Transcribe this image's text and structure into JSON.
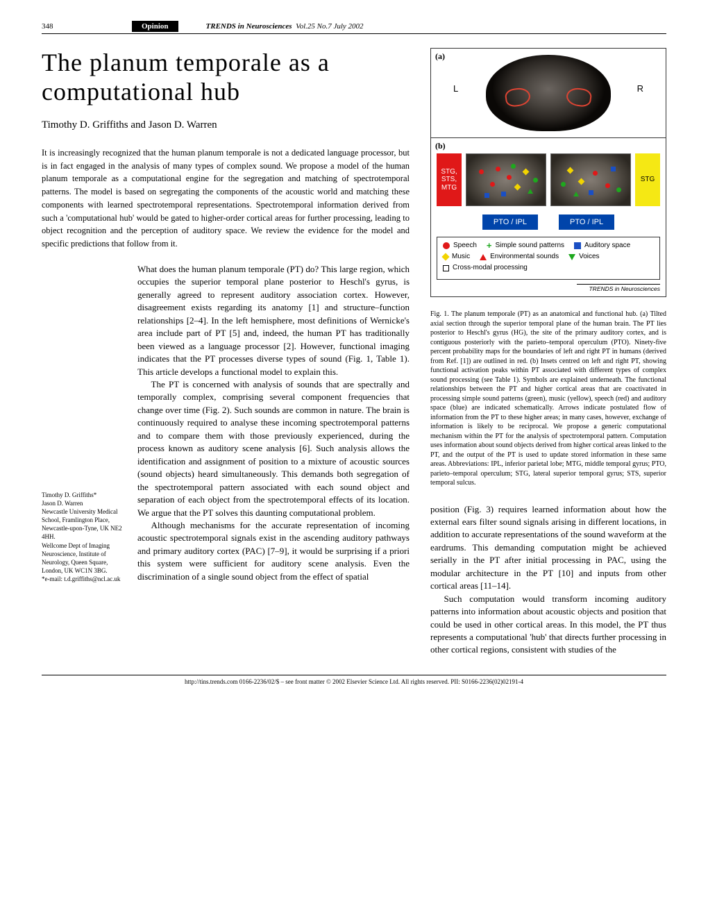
{
  "header": {
    "page_number": "348",
    "section": "Opinion",
    "journal_name": "TRENDS in Neurosciences",
    "issue_info": "Vol.25 No.7 July 2002"
  },
  "article": {
    "title": "The planum temporale as a computational hub",
    "authors": "Timothy D. Griffiths and Jason D. Warren",
    "abstract": "It is increasingly recognized that the human planum temporale is not a dedicated language processor, but is in fact engaged in the analysis of many types of complex sound. We propose a model of the human planum temporale as a computational engine for the segregation and matching of spectrotemporal patterns. The model is based on segregating the components of the acoustic world and matching these components with learned spectrotemporal representations. Spectrotemporal information derived from such a 'computational hub' would be gated to higher-order cortical areas for further processing, leading to object recognition and the perception of auditory space. We review the evidence for the model and specific predictions that follow from it.",
    "body_p1": "What does the human planum temporale (PT) do? This large region, which occupies the superior temporal plane posterior to Heschl's gyrus, is generally agreed to represent auditory association cortex. However, disagreement exists regarding its anatomy [1] and structure–function relationships [2–4]. In the left hemisphere, most definitions of Wernicke's area include part of PT [5] and, indeed, the human PT has traditionally been viewed as a language processor [2]. However, functional imaging indicates that the PT processes diverse types of sound (Fig. 1, Table 1). This article develops a functional model to explain this.",
    "body_p2": "The PT is concerned with analysis of sounds that are spectrally and temporally complex, comprising several component frequencies that change over time (Fig. 2). Such sounds are common in nature. The brain is continuously required to analyse these incoming spectrotemporal patterns and to compare them with those previously experienced, during the process known as auditory scene analysis [6]. Such analysis allows the identification and assignment of position to a mixture of acoustic sources (sound objects) heard simultaneously. This demands both segregation of the spectrotemporal pattern associated with each sound object and separation of each object from the spectrotemporal effects of its location. We argue that the PT solves this daunting computational problem.",
    "body_p3": "Although mechanisms for the accurate representation of incoming acoustic spectrotemporal signals exist in the ascending auditory pathways and primary auditory cortex (PAC) [7–9], it would be surprising if a priori this system were sufficient for auditory scene analysis. Even the discrimination of a single sound object from the effect of spatial",
    "body_r1": "position (Fig. 3) requires learned information about how the external ears filter sound signals arising in different locations, in addition to accurate representations of the sound waveform at the eardrums. This demanding computation might be achieved serially in the PT after initial processing in PAC, using the modular architecture in the PT [10] and inputs from other cortical areas [11–14].",
    "body_r2": "Such computation would transform incoming auditory patterns into information about acoustic objects and position that could be used in other cortical areas. In this model, the PT thus represents a computational 'hub' that directs further processing in other cortical regions, consistent with studies of the"
  },
  "affiliation": {
    "line1": "Timothy D. Griffiths*",
    "line2": "Jason D. Warren",
    "line3": "Newcastle University Medical School, Framlington Place, Newcastle-upon-Tyne, UK NE2 4HH.",
    "line4": "Wellcome Dept of Imaging Neuroscience, Institute of Neurology, Queen Square, London, UK WC1N 3BG.",
    "line5": "*e-mail: t.d.griffiths@ncl.ac.uk"
  },
  "figure": {
    "panel_a": "(a)",
    "panel_b": "(b)",
    "l_label": "L",
    "r_label": "R",
    "left_tag": "STG, STS, MTG",
    "right_tag": "STG",
    "left_tag_bg": "#e01818",
    "right_tag_bg": "#f5e814",
    "pto_label": "PTO / IPL",
    "pto_bg": "#0044aa",
    "legend_items": [
      {
        "type": "circle",
        "color": "#e01818",
        "label": "Speech"
      },
      {
        "type": "plus",
        "color": "#1ea81e",
        "label": "Simple sound patterns"
      },
      {
        "type": "square",
        "color": "#1a4fc4",
        "label": "Auditory space"
      },
      {
        "type": "diamond",
        "color": "#f2d400",
        "label": "Music"
      },
      {
        "type": "tri-up",
        "color": "#e01818",
        "label": "Environmental sounds"
      },
      {
        "type": "tri-dn",
        "color": "#1ea81e",
        "label": "Voices"
      },
      {
        "type": "sq-open",
        "color": "#000000",
        "label": "Cross-modal processing"
      }
    ],
    "trends_line": "TRENDS in Neurosciences",
    "scatter_colors": {
      "speech": "#e01818",
      "simple": "#1ea81e",
      "space": "#1a4fc4",
      "music": "#f2d400",
      "voices": "#1ea81e",
      "env": "#e01818"
    },
    "left_inset_points": [
      {
        "x": 18,
        "y": 22,
        "t": "dot",
        "c": "speech"
      },
      {
        "x": 42,
        "y": 18,
        "t": "dot",
        "c": "speech"
      },
      {
        "x": 34,
        "y": 40,
        "t": "dot",
        "c": "speech"
      },
      {
        "x": 58,
        "y": 30,
        "t": "dot",
        "c": "speech"
      },
      {
        "x": 70,
        "y": 44,
        "t": "diam",
        "c": "music"
      },
      {
        "x": 82,
        "y": 22,
        "t": "diam",
        "c": "music"
      },
      {
        "x": 50,
        "y": 54,
        "t": "sq",
        "c": "space"
      },
      {
        "x": 26,
        "y": 56,
        "t": "sq",
        "c": "space"
      },
      {
        "x": 88,
        "y": 50,
        "t": "tri",
        "c": "voices"
      },
      {
        "x": 64,
        "y": 14,
        "t": "dot",
        "c": "simple"
      },
      {
        "x": 96,
        "y": 34,
        "t": "dot",
        "c": "simple"
      }
    ],
    "right_inset_points": [
      {
        "x": 24,
        "y": 20,
        "t": "diam",
        "c": "music"
      },
      {
        "x": 40,
        "y": 36,
        "t": "diam",
        "c": "music"
      },
      {
        "x": 60,
        "y": 24,
        "t": "dot",
        "c": "speech"
      },
      {
        "x": 78,
        "y": 42,
        "t": "dot",
        "c": "speech"
      },
      {
        "x": 54,
        "y": 52,
        "t": "sq",
        "c": "space"
      },
      {
        "x": 86,
        "y": 18,
        "t": "sq",
        "c": "space"
      },
      {
        "x": 32,
        "y": 54,
        "t": "tri",
        "c": "voices"
      },
      {
        "x": 94,
        "y": 48,
        "t": "dot",
        "c": "simple"
      },
      {
        "x": 14,
        "y": 40,
        "t": "dot",
        "c": "simple"
      }
    ],
    "caption": "Fig. 1. The planum temporale (PT) as an anatomical and functional hub. (a) Tilted axial section through the superior temporal plane of the human brain. The PT lies posterior to Heschl's gyrus (HG), the site of the primary auditory cortex, and is contiguous posteriorly with the parieto–temporal operculum (PTO). Ninety-five percent probability maps for the boundaries of left and right PT in humans (derived from Ref. [1]) are outlined in red. (b) Insets centred on left and right PT, showing functional activation peaks within PT associated with different types of complex sound processing (see Table 1). Symbols are explained underneath. The functional relationships between the PT and higher cortical areas that are coactivated in processing simple sound patterns (green), music (yellow), speech (red) and auditory space (blue) are indicated schematically. Arrows indicate postulated flow of information from the PT to these higher areas; in many cases, however, exchange of information is likely to be reciprocal. We propose a generic computational mechanism within the PT for the analysis of spectrotemporal pattern. Computation uses information about sound objects derived from higher cortical areas linked to the PT, and the output of the PT is used to update stored information in these same areas. Abbreviations: IPL, inferior parietal lobe; MTG, middle temporal gyrus; PTO, parieto–temporal operculum; STG, lateral superior temporal gyrus; STS, superior temporal sulcus."
  },
  "footer": {
    "text": "http://tins.trends.com    0166-2236/02/$ – see front matter © 2002 Elsevier Science Ltd. All rights reserved. PII: S0166-2236(02)02191-4"
  }
}
